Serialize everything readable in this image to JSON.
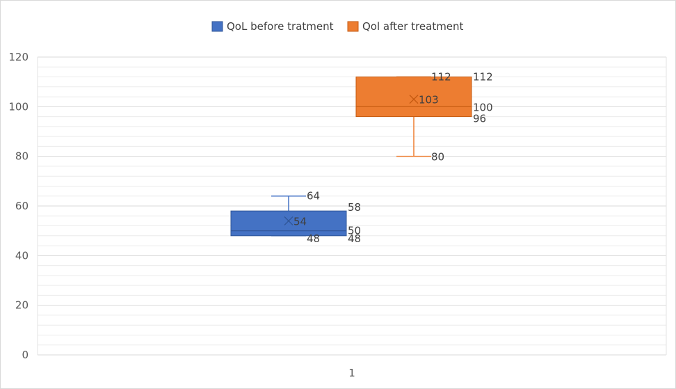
{
  "chart_data": {
    "type": "box",
    "categories": [
      "1"
    ],
    "ylim": [
      0,
      120
    ],
    "ymajor": 20,
    "yminor": 4,
    "yticks": [
      0,
      20,
      40,
      60,
      80,
      100,
      120
    ],
    "grid": true,
    "legend_position": "top",
    "series": [
      {
        "name": "QoL before tratment",
        "color": "#4472c4",
        "min": 48,
        "q1": 48,
        "median": 50,
        "q3": 58,
        "max": 64,
        "mean": 54,
        "labels": [
          "64",
          "58",
          "54",
          "50",
          "48",
          "48"
        ]
      },
      {
        "name": "Qol after treatment",
        "color": "#ed7d31",
        "min": 80,
        "q1": 96,
        "median": 100,
        "q3": 112,
        "max": 112,
        "mean": 103,
        "labels": [
          "112",
          "112",
          "103",
          "100",
          "96",
          "80"
        ]
      }
    ]
  }
}
